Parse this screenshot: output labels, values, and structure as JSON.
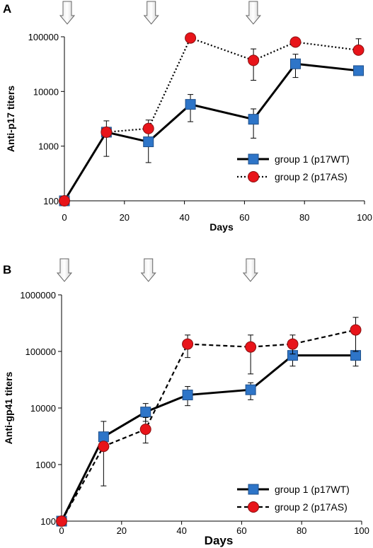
{
  "chart_data": [
    {
      "type": "line",
      "panel_label": "A",
      "xlabel": "Days",
      "ylabel": "Anti-p17 titers",
      "xlim": [
        0,
        100
      ],
      "xticks": [
        0,
        20,
        40,
        60,
        80,
        100
      ],
      "ylim": [
        100,
        100000
      ],
      "yscale": "log",
      "yticks": [
        100,
        1000,
        10000,
        100000
      ],
      "ytick_labels": [
        "100",
        "1000",
        "10000",
        "100000"
      ],
      "immunization_arrows_days": [
        0,
        28,
        62
      ],
      "legend_position": "bottom-right",
      "series": [
        {
          "name": "group 1 (p17WT)",
          "line_style": "solid",
          "marker": "square",
          "color": "#2e75c8",
          "x": [
            0,
            14,
            28,
            42,
            63,
            77,
            98
          ],
          "y": [
            100,
            1800,
            1200,
            5800,
            3100,
            32000,
            24000
          ],
          "err_low": [
            null,
            650,
            500,
            2800,
            1400,
            18000,
            null
          ],
          "err_high": [
            null,
            2900,
            2000,
            8800,
            4800,
            48000,
            null
          ]
        },
        {
          "name": "group 2 (p17AS)",
          "line_style": "dotted",
          "marker": "circle",
          "color": "#e8141a",
          "x": [
            0,
            14,
            28,
            42,
            63,
            77,
            98
          ],
          "y": [
            100,
            1800,
            2100,
            95000,
            37000,
            80000,
            57000
          ],
          "err_low": [
            null,
            null,
            null,
            null,
            16000,
            null,
            null
          ],
          "err_high": [
            null,
            null,
            3000,
            null,
            60000,
            null,
            92000
          ]
        }
      ]
    },
    {
      "type": "line",
      "panel_label": "B",
      "xlabel": "Days",
      "ylabel": "Anti-gp41 titers",
      "xlim": [
        0,
        100
      ],
      "xticks": [
        0,
        20,
        40,
        60,
        80,
        100
      ],
      "ylim": [
        100,
        1000000
      ],
      "yscale": "log",
      "yticks": [
        100,
        1000,
        10000,
        100000,
        1000000
      ],
      "ytick_labels": [
        "100",
        "1000",
        "10000",
        "100000",
        "1000000"
      ],
      "immunization_arrows_days": [
        0,
        28,
        62
      ],
      "legend_position": "bottom-right",
      "series": [
        {
          "name": "group 1 (p17WT)",
          "line_style": "solid",
          "marker": "square",
          "color": "#2e75c8",
          "x": [
            0,
            14,
            28,
            42,
            63,
            77,
            98
          ],
          "y": [
            100,
            3100,
            8500,
            17000,
            21000,
            85000,
            85000
          ],
          "err_low": [
            null,
            420,
            5800,
            11000,
            14000,
            55000,
            55000
          ],
          "err_high": [
            null,
            5800,
            12000,
            24000,
            28000,
            null,
            null
          ]
        },
        {
          "name": "group 2 (p17AS)",
          "line_style": "dashed",
          "marker": "circle",
          "color": "#e8141a",
          "x": [
            0,
            14,
            28,
            42,
            63,
            77,
            98
          ],
          "y": [
            100,
            2100,
            4200,
            135000,
            120000,
            135000,
            240000
          ],
          "err_low": [
            null,
            null,
            2400,
            78000,
            40000,
            90000,
            100000
          ],
          "err_high": [
            null,
            null,
            6800,
            195000,
            195000,
            195000,
            400000
          ]
        }
      ]
    }
  ]
}
